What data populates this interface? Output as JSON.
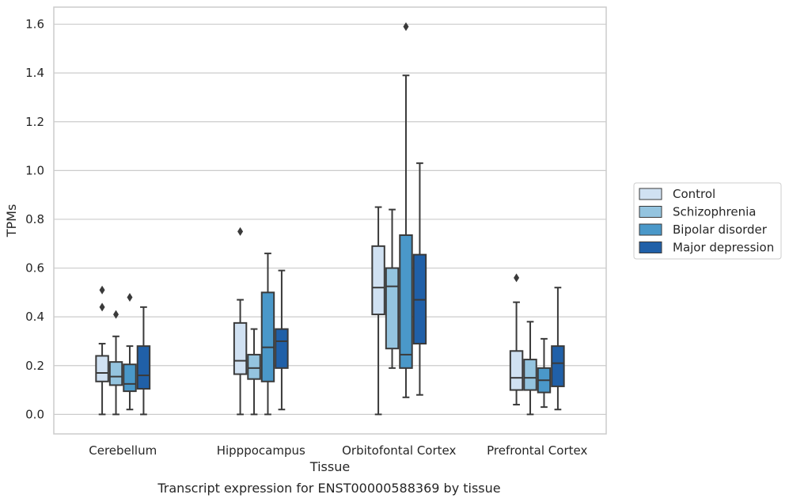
{
  "caption": "Transcript expression for ENST00000588369 by tissue",
  "chart_data": {
    "type": "boxplot",
    "title": "",
    "xlabel": "Tissue",
    "ylabel": "TPMs",
    "ylim": [
      -0.08,
      1.67
    ],
    "yticks": [
      "0.0",
      "0.2",
      "0.4",
      "0.6",
      "0.8",
      "1.0",
      "1.2",
      "1.4",
      "1.6"
    ],
    "categories": [
      "Cerebellum",
      "Hipppocampus",
      "Orbitofontal Cortex",
      "Prefrontal Cortex"
    ],
    "grid": "horizontal",
    "legend_position": "right",
    "series": [
      {
        "name": "Control",
        "color": "#d0e1f2",
        "boxes": [
          {
            "whislo": 0.0,
            "q1": 0.135,
            "med": 0.17,
            "q3": 0.24,
            "whishi": 0.29,
            "fliers": [
              0.44,
              0.51
            ]
          },
          {
            "whislo": 0.0,
            "q1": 0.165,
            "med": 0.22,
            "q3": 0.375,
            "whishi": 0.47,
            "fliers": [
              0.75
            ]
          },
          {
            "whislo": 0.0,
            "q1": 0.41,
            "med": 0.52,
            "q3": 0.69,
            "whishi": 0.85,
            "fliers": []
          },
          {
            "whislo": 0.04,
            "q1": 0.1,
            "med": 0.15,
            "q3": 0.26,
            "whishi": 0.46,
            "fliers": [
              0.56
            ]
          }
        ]
      },
      {
        "name": "Schizophrenia",
        "color": "#94c4df",
        "boxes": [
          {
            "whislo": 0.0,
            "q1": 0.12,
            "med": 0.155,
            "q3": 0.215,
            "whishi": 0.32,
            "fliers": [
              0.41
            ]
          },
          {
            "whislo": 0.0,
            "q1": 0.145,
            "med": 0.19,
            "q3": 0.245,
            "whishi": 0.35,
            "fliers": []
          },
          {
            "whislo": 0.19,
            "q1": 0.27,
            "med": 0.525,
            "q3": 0.6,
            "whishi": 0.84,
            "fliers": []
          },
          {
            "whislo": 0.0,
            "q1": 0.1,
            "med": 0.15,
            "q3": 0.225,
            "whishi": 0.38,
            "fliers": []
          }
        ]
      },
      {
        "name": "Bipolar disorder",
        "color": "#4a98c9",
        "boxes": [
          {
            "whislo": 0.02,
            "q1": 0.095,
            "med": 0.125,
            "q3": 0.205,
            "whishi": 0.28,
            "fliers": [
              0.48
            ]
          },
          {
            "whislo": 0.0,
            "q1": 0.135,
            "med": 0.275,
            "q3": 0.5,
            "whishi": 0.66,
            "fliers": []
          },
          {
            "whislo": 0.07,
            "q1": 0.19,
            "med": 0.245,
            "q3": 0.735,
            "whishi": 1.39,
            "fliers": [
              1.59
            ]
          },
          {
            "whislo": 0.03,
            "q1": 0.09,
            "med": 0.14,
            "q3": 0.19,
            "whishi": 0.31,
            "fliers": []
          }
        ]
      },
      {
        "name": "Major depression",
        "color": "#2060a8",
        "boxes": [
          {
            "whislo": 0.0,
            "q1": 0.105,
            "med": 0.16,
            "q3": 0.28,
            "whishi": 0.44,
            "fliers": []
          },
          {
            "whislo": 0.02,
            "q1": 0.19,
            "med": 0.3,
            "q3": 0.35,
            "whishi": 0.59,
            "fliers": []
          },
          {
            "whislo": 0.08,
            "q1": 0.29,
            "med": 0.47,
            "q3": 0.655,
            "whishi": 1.03,
            "fliers": []
          },
          {
            "whislo": 0.02,
            "q1": 0.115,
            "med": 0.21,
            "q3": 0.28,
            "whishi": 0.52,
            "fliers": []
          }
        ]
      }
    ]
  }
}
